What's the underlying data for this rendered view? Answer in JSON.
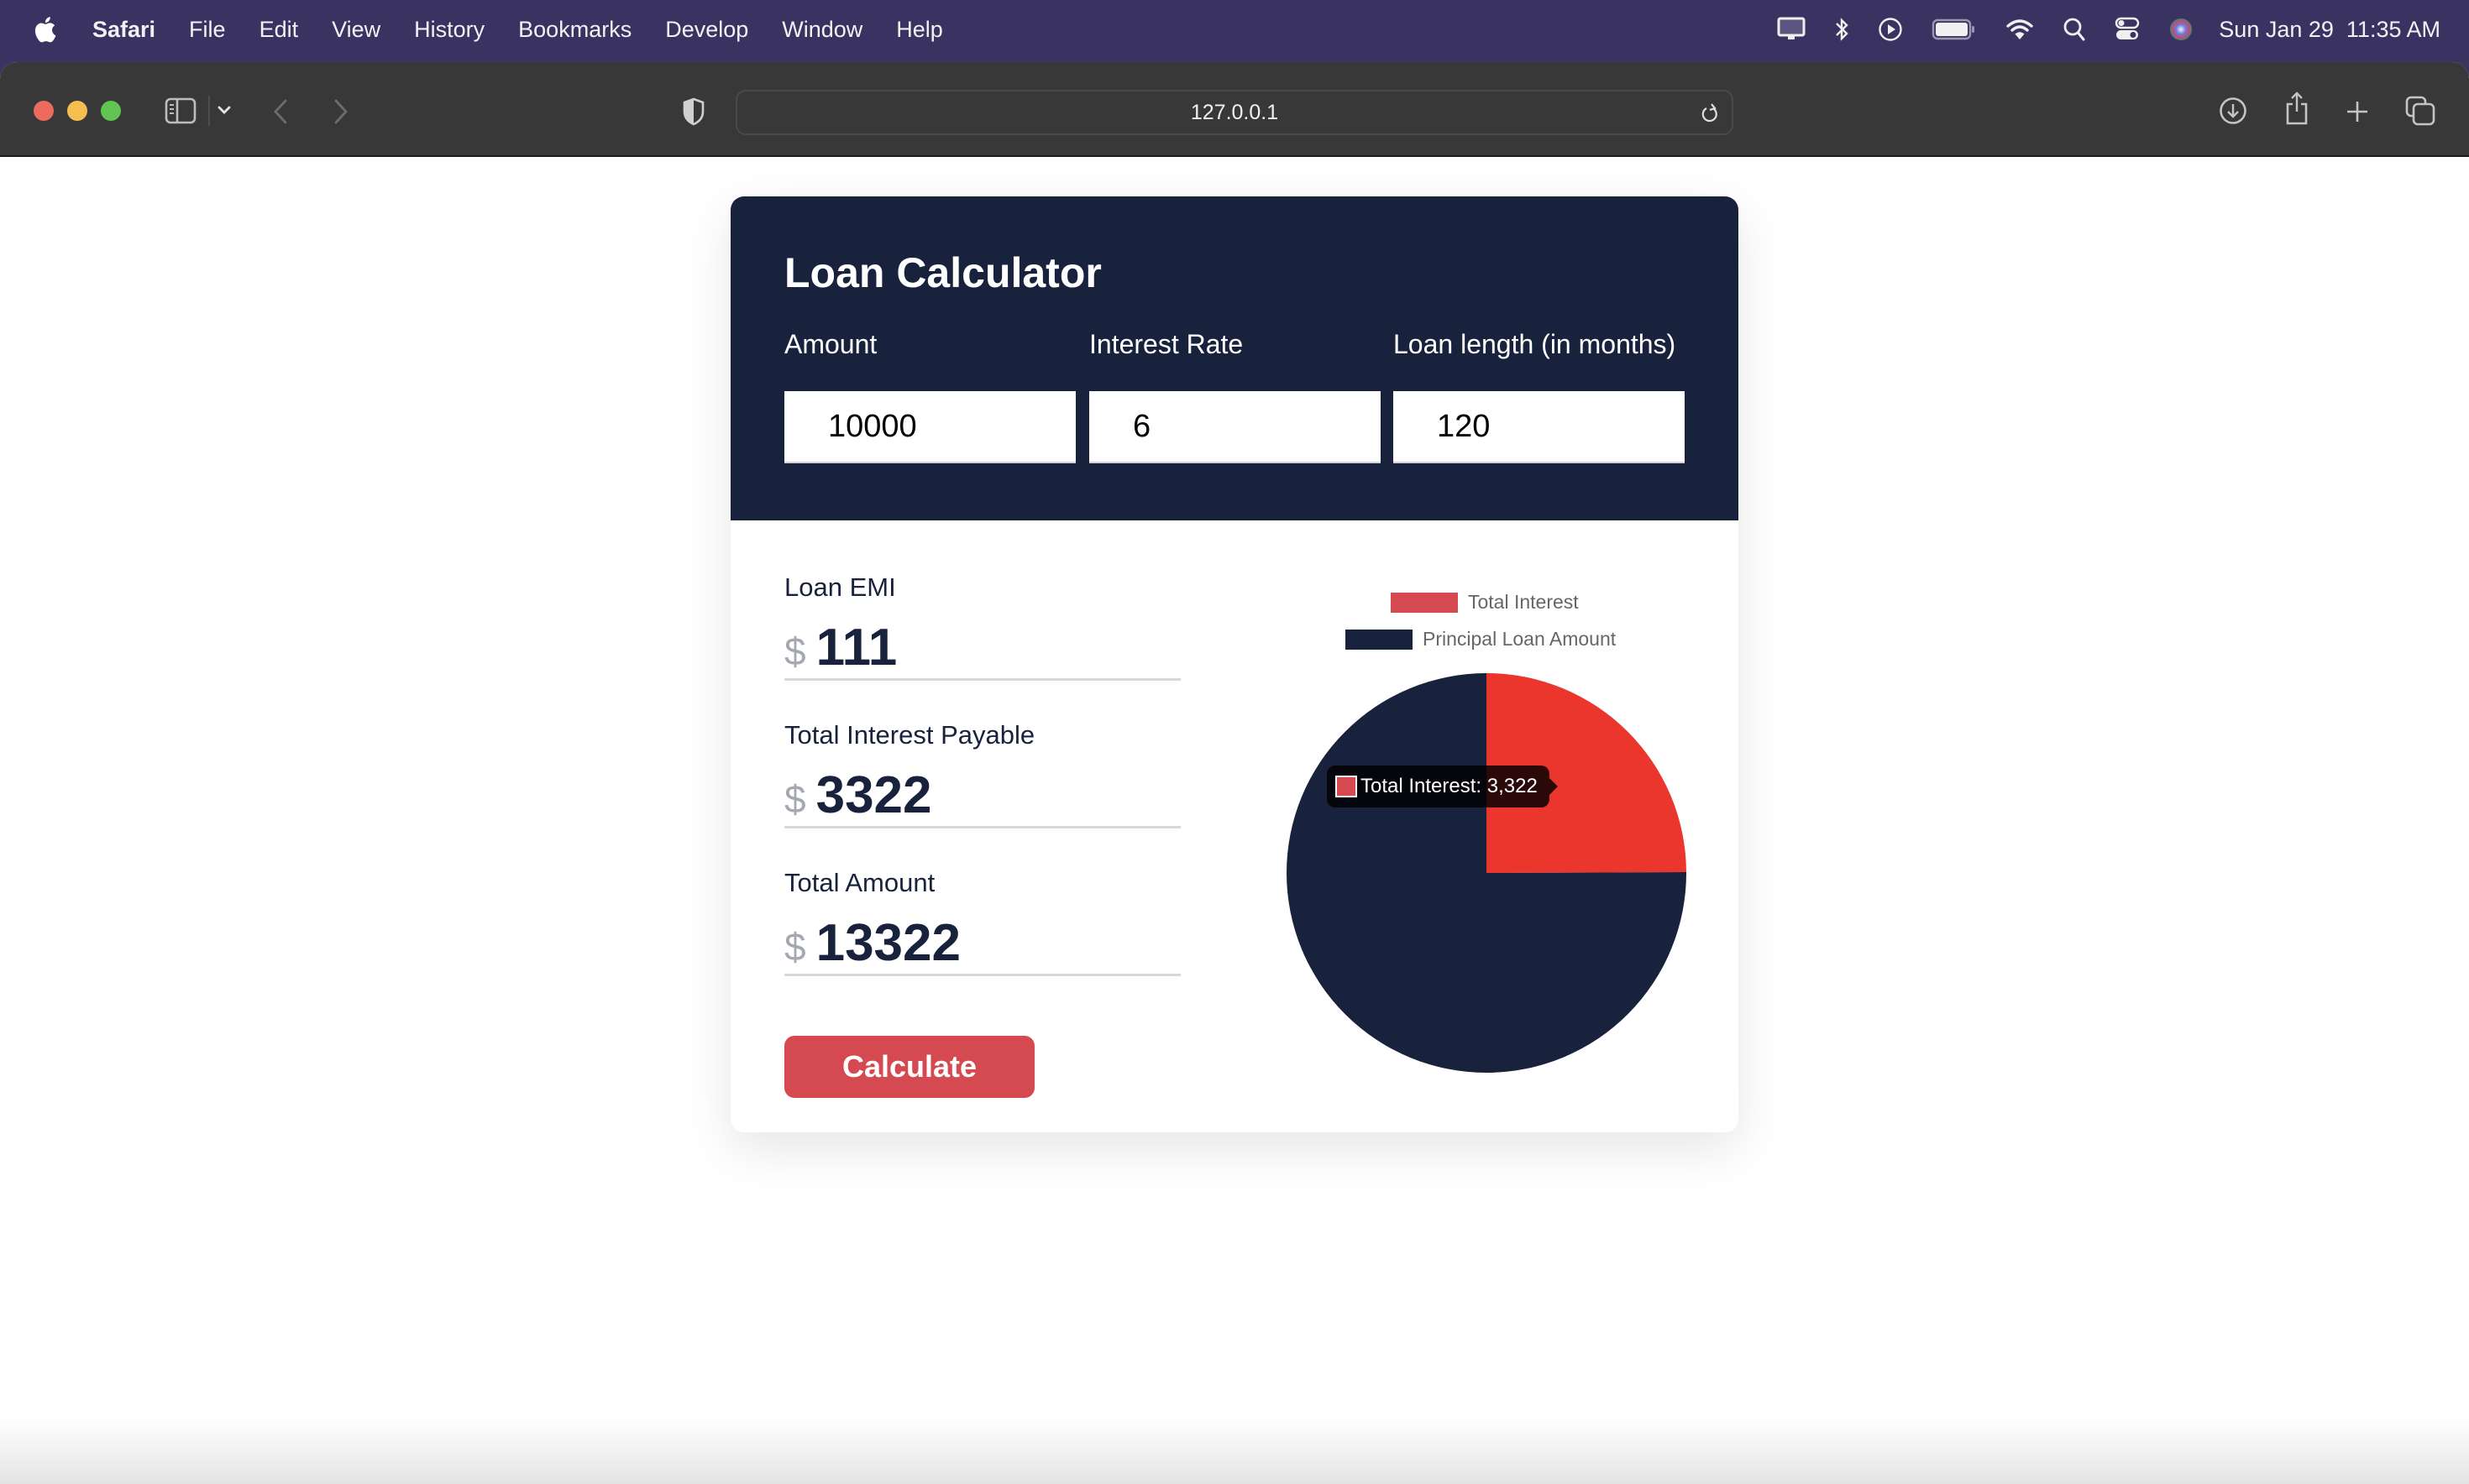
{
  "menubar": {
    "app_name": "Safari",
    "items": [
      "File",
      "Edit",
      "View",
      "History",
      "Bookmarks",
      "Develop",
      "Window",
      "Help"
    ],
    "status_icons": [
      "display-icon",
      "bluetooth-icon",
      "now-playing-icon",
      "battery-icon",
      "wifi-icon",
      "spotlight-icon",
      "control-center-icon",
      "siri-icon"
    ],
    "clock": {
      "date": "Sun Jan 29",
      "time": "11:35 AM"
    }
  },
  "browser": {
    "url": "127.0.0.1",
    "toolbar_icons": [
      "sidebar-toggle-icon",
      "chevron-down-icon",
      "back-icon",
      "forward-icon",
      "privacy-shield-icon",
      "reload-icon",
      "downloads-icon",
      "share-icon",
      "new-tab-icon",
      "tab-overview-icon"
    ]
  },
  "calculator": {
    "title": "Loan Calculator",
    "fields": [
      {
        "label": "Amount",
        "value": "10000"
      },
      {
        "label": "Interest Rate",
        "value": "6"
      },
      {
        "label": "Loan length (in months)",
        "value": "120"
      }
    ],
    "results": [
      {
        "label": "Loan EMI",
        "currency": "$",
        "value": "111"
      },
      {
        "label": "Total Interest Payable",
        "currency": "$",
        "value": "3322"
      },
      {
        "label": "Total Amount",
        "currency": "$",
        "value": "13322"
      }
    ],
    "calculate_label": "Calculate"
  },
  "colors": {
    "navy": "#19223d",
    "interest_red": "#d54a50",
    "interest_red_hover": "#ea362d",
    "menubar": "#3a3361",
    "toolbar": "#383838"
  },
  "chart_data": {
    "type": "pie",
    "title": "",
    "categories": [
      "Total Interest",
      "Principal Loan Amount"
    ],
    "values": [
      3322,
      10000
    ],
    "colors": [
      "#d54a50",
      "#19223d"
    ],
    "legend_position": "top",
    "tooltip": {
      "label": "Total Interest",
      "value": "3,322",
      "text": "Total Interest: 3,322"
    }
  }
}
